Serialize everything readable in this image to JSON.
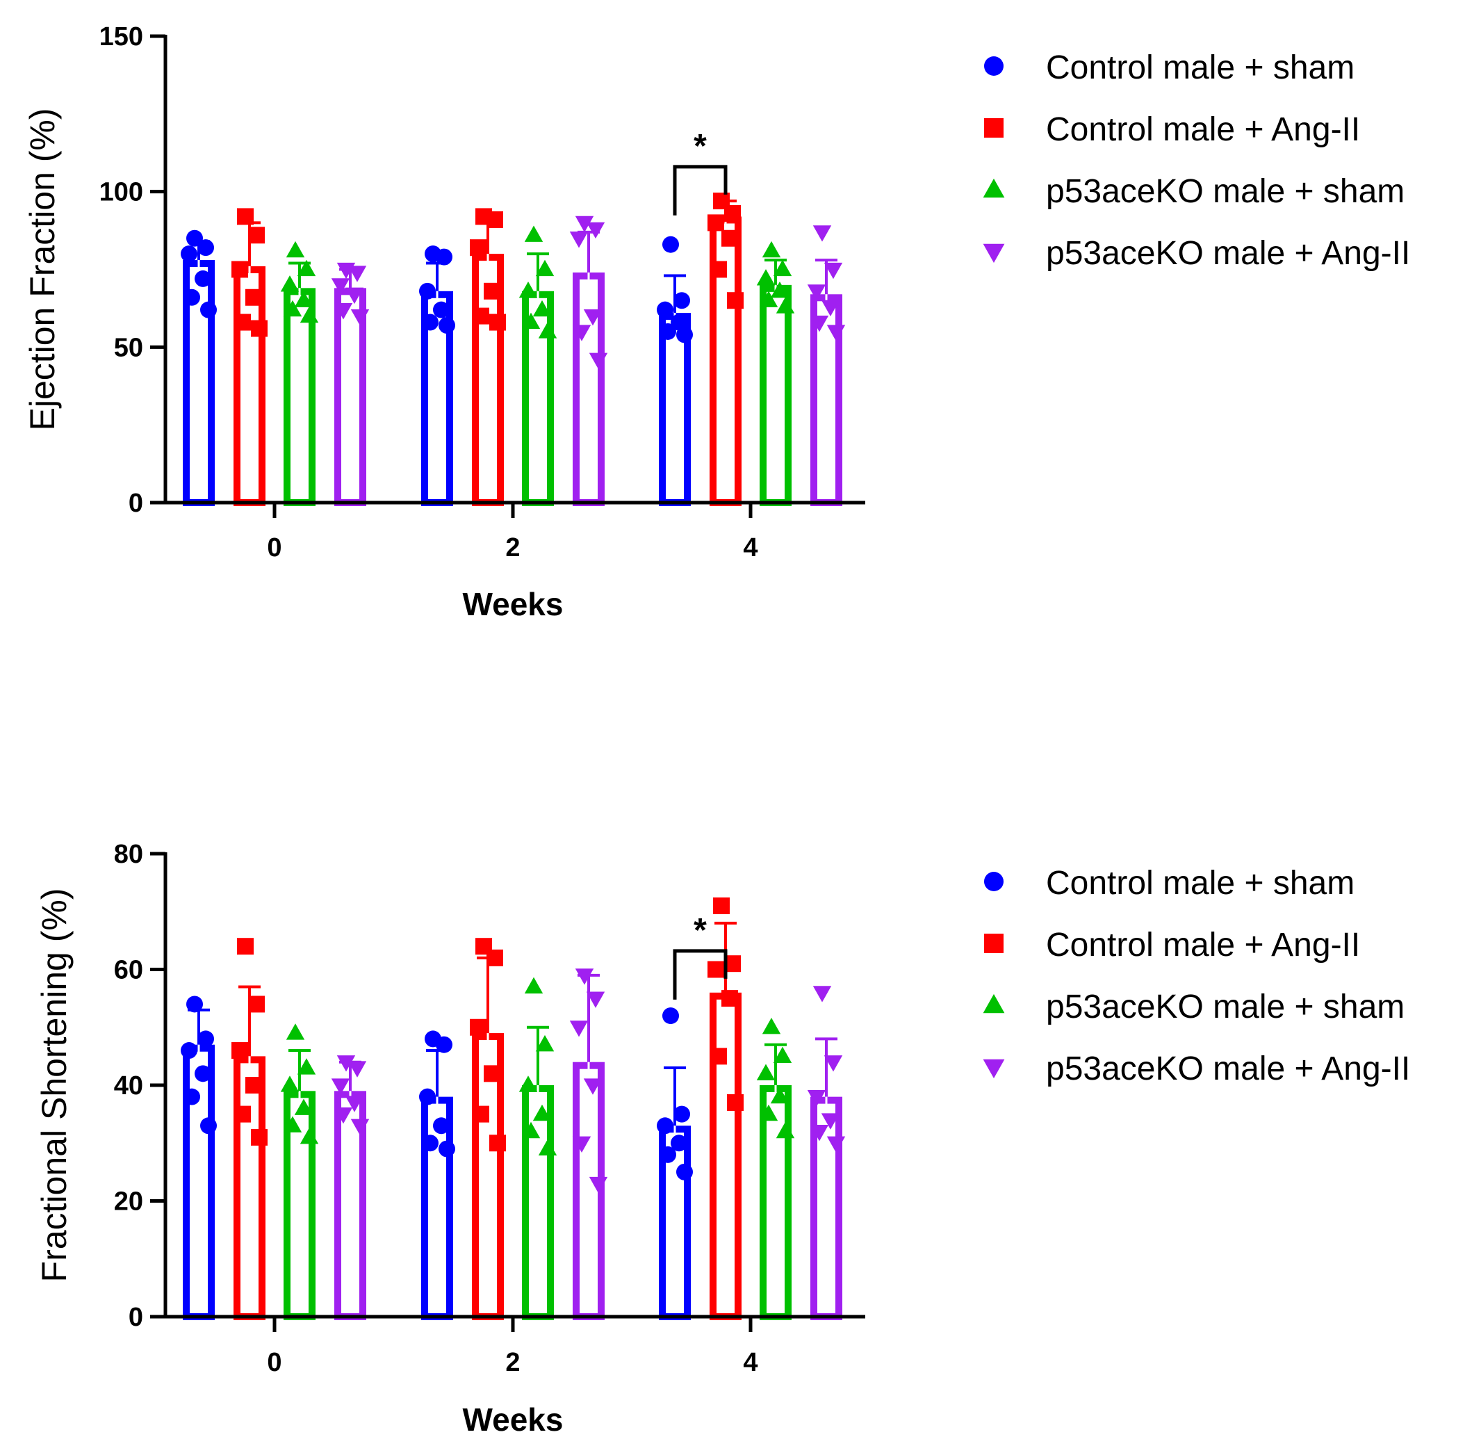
{
  "chart_data": [
    {
      "type": "bar",
      "title": "",
      "ylabel": "Ejection Fraction (%)",
      "xlabel": "Weeks",
      "ylim": [
        0,
        150
      ],
      "yticks": [
        "0",
        "50",
        "100",
        "150"
      ],
      "categories": [
        "0",
        "2",
        "4"
      ],
      "legend_position": "right",
      "series": [
        {
          "name": "Control male + sham",
          "color": "#0000ff",
          "marker": "circle",
          "values": [
            78,
            68,
            61
          ],
          "errors": [
            6,
            9,
            12
          ],
          "points": [
            [
              85,
              82,
              80,
              72,
              66,
              62
            ],
            [
              80,
              79,
              68,
              62,
              58,
              57
            ],
            [
              83,
              65,
              62,
              58,
              55,
              54
            ]
          ]
        },
        {
          "name": "Control male + Ang-II",
          "color": "#ff0000",
          "marker": "square",
          "values": [
            76,
            80,
            92
          ],
          "errors": [
            14,
            12,
            5
          ],
          "points": [
            [
              92,
              86,
              75,
              66,
              58,
              56
            ],
            [
              92,
              91,
              82,
              68,
              60,
              58
            ],
            [
              97,
              93,
              90,
              85,
              75,
              65
            ]
          ]
        },
        {
          "name": "p53aceKO male + sham",
          "color": "#00c000",
          "marker": "triangle-up",
          "values": [
            69,
            68,
            70
          ],
          "errors": [
            8,
            12,
            8
          ],
          "points": [
            [
              81,
              75,
              70,
              65,
              62,
              60
            ],
            [
              86,
              75,
              68,
              62,
              58,
              55
            ],
            [
              81,
              75,
              72,
              68,
              65,
              63
            ]
          ]
        },
        {
          "name": "p53aceKO male + Ang-II",
          "color": "#a020f0",
          "marker": "triangle-down",
          "values": [
            69,
            74,
            67
          ],
          "errors": [
            6,
            13,
            11
          ],
          "points": [
            [
              75,
              74,
              70,
              67,
              62,
              60
            ],
            [
              90,
              88,
              85,
              60,
              55,
              46
            ],
            [
              87,
              75,
              68,
              63,
              58,
              55
            ]
          ]
        }
      ],
      "annotations": [
        {
          "text": "*",
          "category": "4",
          "from": "Control male + sham",
          "to": "Control male + Ang-II"
        }
      ]
    },
    {
      "type": "bar",
      "title": "",
      "ylabel": "Fractional Shortening (%)",
      "xlabel": "Weeks",
      "ylim": [
        0,
        80
      ],
      "yticks": [
        "0",
        "20",
        "40",
        "60",
        "80"
      ],
      "categories": [
        "0",
        "2",
        "4"
      ],
      "legend_position": "right",
      "series": [
        {
          "name": "Control male + sham",
          "color": "#0000ff",
          "marker": "circle",
          "values": [
            47,
            38,
            33
          ],
          "errors": [
            6,
            8,
            10
          ],
          "points": [
            [
              54,
              48,
              46,
              42,
              38,
              33
            ],
            [
              48,
              47,
              38,
              33,
              30,
              29
            ],
            [
              52,
              35,
              33,
              30,
              28,
              25
            ]
          ]
        },
        {
          "name": "Control male + Ang-II",
          "color": "#ff0000",
          "marker": "square",
          "values": [
            45,
            49,
            56
          ],
          "errors": [
            12,
            13,
            12
          ],
          "points": [
            [
              64,
              54,
              46,
              40,
              35,
              31
            ],
            [
              64,
              62,
              50,
              42,
              35,
              30
            ],
            [
              71,
              61,
              60,
              55,
              45,
              37
            ]
          ]
        },
        {
          "name": "p53aceKO male + sham",
          "color": "#00c000",
          "marker": "triangle-up",
          "values": [
            39,
            40,
            40
          ],
          "errors": [
            7,
            10,
            7
          ],
          "points": [
            [
              49,
              43,
              40,
              36,
              33,
              31
            ],
            [
              57,
              47,
              40,
              35,
              32,
              29
            ],
            [
              50,
              45,
              42,
              38,
              35,
              32
            ]
          ]
        },
        {
          "name": "p53aceKO male + Ang-II",
          "color": "#a020f0",
          "marker": "triangle-down",
          "values": [
            39,
            44,
            38
          ],
          "errors": [
            5,
            15,
            10
          ],
          "points": [
            [
              44,
              43,
              40,
              37,
              35,
              33
            ],
            [
              59,
              55,
              50,
              40,
              30,
              23
            ],
            [
              56,
              44,
              38,
              34,
              32,
              30
            ]
          ]
        }
      ],
      "annotations": [
        {
          "text": "*",
          "category": "4",
          "from": "Control male + sham",
          "to": "Control male + Ang-II"
        }
      ]
    }
  ]
}
